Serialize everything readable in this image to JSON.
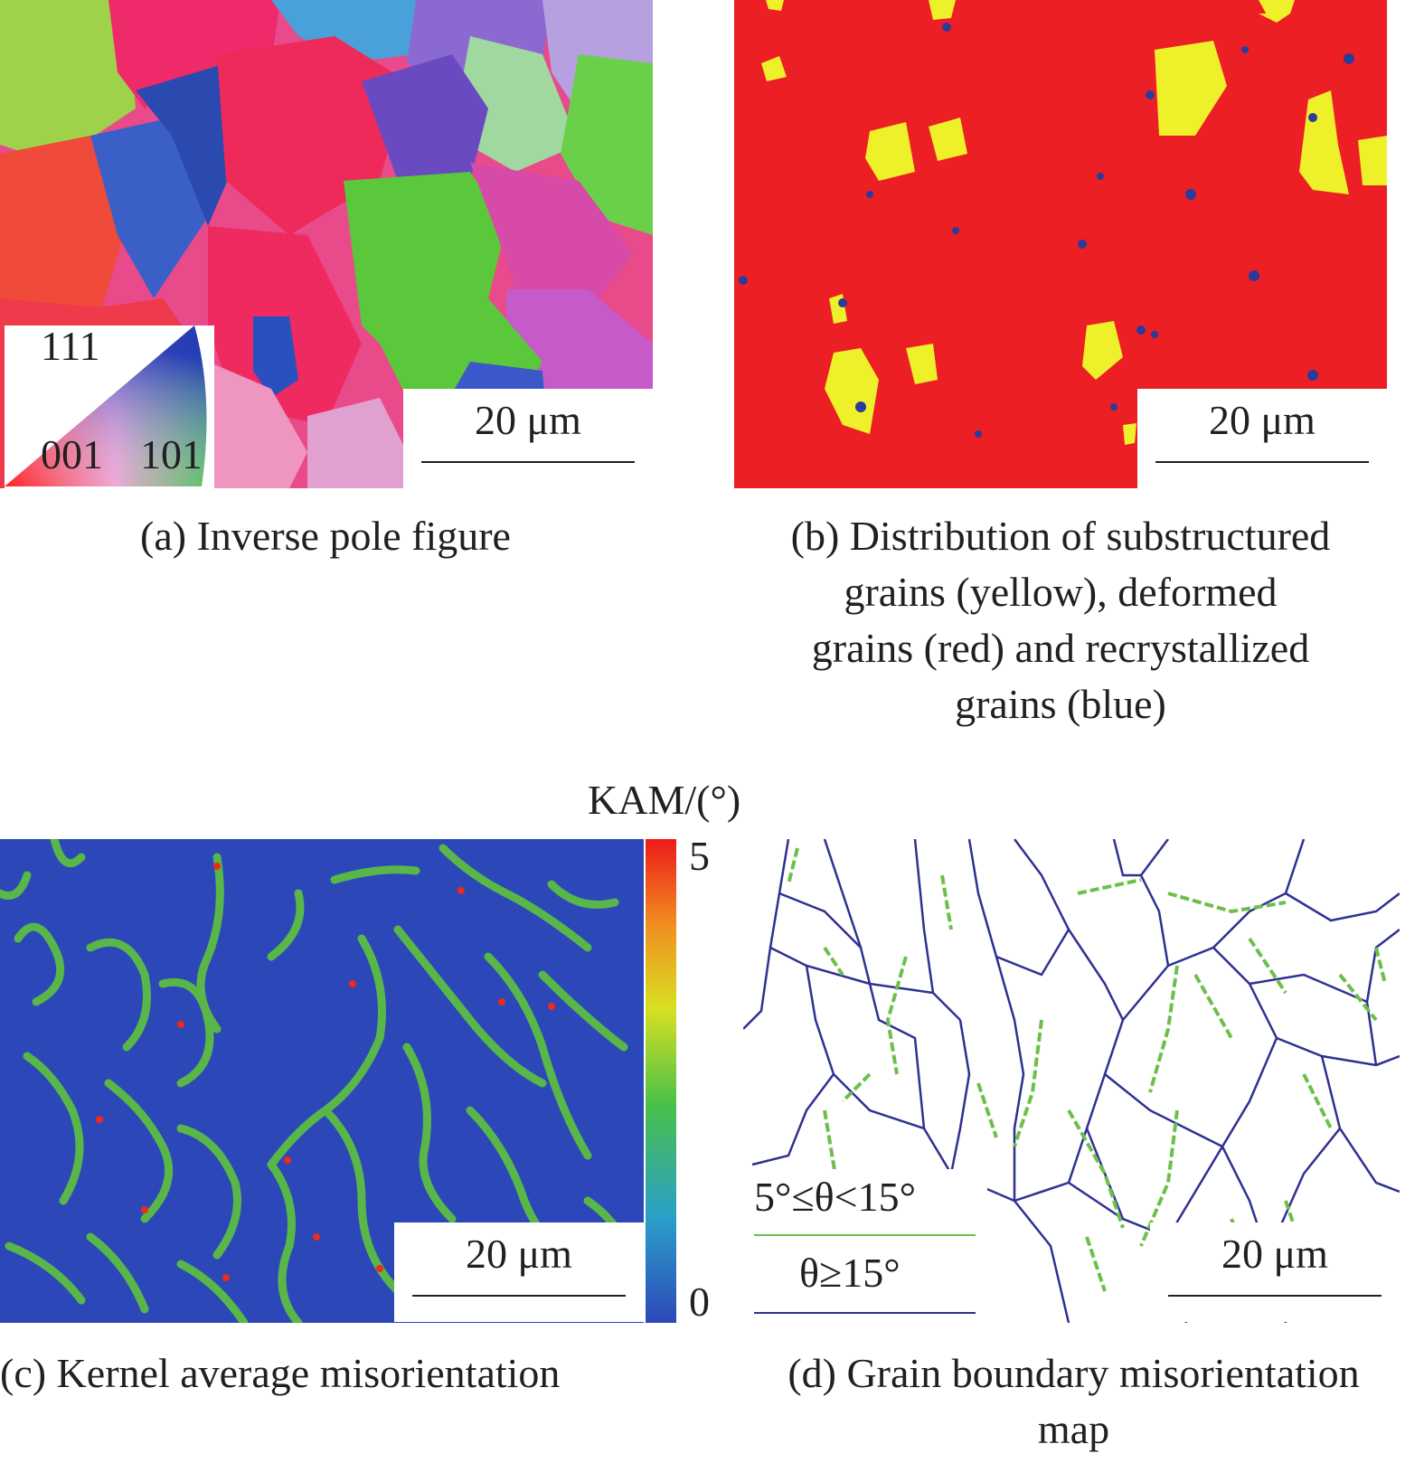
{
  "panels": {
    "a": {
      "caption": "(a) Inverse pole figure",
      "scale_label": "20 μm",
      "key_labels": {
        "top": "111",
        "bottom_left": "001",
        "bottom_right": "101"
      }
    },
    "b": {
      "caption_lines": [
        "(b) Distribution of substructured",
        "grains (yellow), deformed",
        "grains (red) and recrystallized",
        "grains (blue)"
      ],
      "scale_label": "20 μm",
      "colors": {
        "deformed": "#ec1f24",
        "substructured": "#eef02a",
        "recrystallized": "#2b3b9a"
      }
    },
    "c": {
      "caption": "(c) Kernel average misorientation",
      "scale_label": "20 μm",
      "colorbar": {
        "title": "KAM/(°)",
        "max_label": "5",
        "min_label": "0"
      }
    },
    "d": {
      "caption_lines": [
        "(d) Grain boundary misorientation",
        "map"
      ],
      "scale_label": "20 μm",
      "legend": [
        {
          "label": "5°≤θ<15°",
          "color": "#6cc04a"
        },
        {
          "label": "θ≥15°",
          "color": "#2e3192"
        }
      ]
    }
  }
}
